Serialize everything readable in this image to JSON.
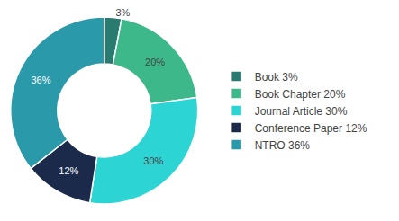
{
  "chart_data": {
    "type": "donut",
    "categories": [
      "Book 3%",
      "Book Chapter 20%",
      "Journal Article 30%",
      "Conference Paper 12%",
      "NTRO 36%"
    ],
    "values": [
      3,
      20,
      30,
      12,
      36
    ],
    "value_labels": [
      "3%",
      "20%",
      "30%",
      "12%",
      "36%"
    ],
    "colors": [
      "#2a7b6f",
      "#3db88a",
      "#2dd4d4",
      "#1b2a4a",
      "#2a9aaa"
    ],
    "data_labels": true,
    "legend": "right"
  }
}
